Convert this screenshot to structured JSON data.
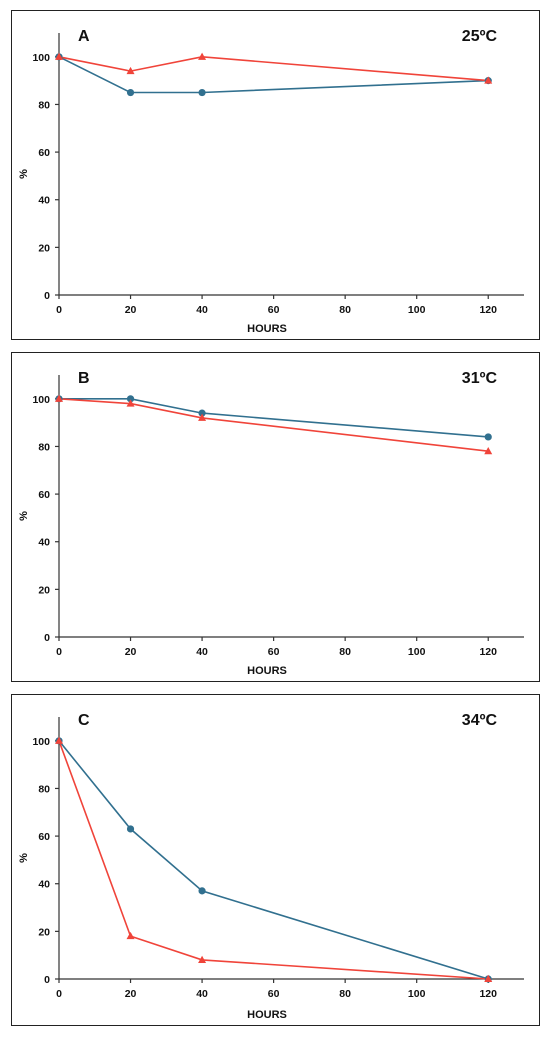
{
  "colors": {
    "series_blue": "#31708f",
    "series_red": "#f0443a"
  },
  "chart_data": [
    {
      "type": "line",
      "title": "A",
      "subtitle": "25ºC",
      "xlabel": "HOURS",
      "ylabel": "%",
      "xlim": [
        0,
        130
      ],
      "ylim": [
        0,
        110
      ],
      "x_ticks": [
        0,
        20,
        40,
        60,
        80,
        100,
        120
      ],
      "y_ticks": [
        0,
        20,
        40,
        60,
        80,
        100
      ],
      "grid": false,
      "series": [
        {
          "marker": "circle",
          "color": "#31708f",
          "x": [
            0,
            20,
            40,
            120
          ],
          "y": [
            100,
            85,
            85,
            90
          ]
        },
        {
          "marker": "triangle",
          "color": "#f0443a",
          "x": [
            0,
            20,
            40,
            120
          ],
          "y": [
            100,
            94,
            100,
            90
          ]
        }
      ]
    },
    {
      "type": "line",
      "title": "B",
      "subtitle": "31ºC",
      "xlabel": "HOURS",
      "ylabel": "%",
      "xlim": [
        0,
        130
      ],
      "ylim": [
        0,
        110
      ],
      "x_ticks": [
        0,
        20,
        40,
        60,
        80,
        100,
        120
      ],
      "y_ticks": [
        0,
        20,
        40,
        60,
        80,
        100
      ],
      "grid": false,
      "series": [
        {
          "marker": "circle",
          "color": "#31708f",
          "x": [
            0,
            20,
            40,
            120
          ],
          "y": [
            100,
            100,
            94,
            84
          ]
        },
        {
          "marker": "triangle",
          "color": "#f0443a",
          "x": [
            0,
            20,
            40,
            120
          ],
          "y": [
            100,
            98,
            92,
            78
          ]
        }
      ]
    },
    {
      "type": "line",
      "title": "C",
      "subtitle": "34ºC",
      "xlabel": "HOURS",
      "ylabel": "%",
      "xlim": [
        0,
        130
      ],
      "ylim": [
        0,
        110
      ],
      "x_ticks": [
        0,
        20,
        40,
        60,
        80,
        100,
        120
      ],
      "y_ticks": [
        0,
        20,
        40,
        60,
        80,
        100
      ],
      "grid": false,
      "series": [
        {
          "marker": "circle",
          "color": "#31708f",
          "x": [
            0,
            20,
            40,
            120
          ],
          "y": [
            100,
            63,
            37,
            0
          ]
        },
        {
          "marker": "triangle",
          "color": "#f0443a",
          "x": [
            0,
            20,
            40,
            120
          ],
          "y": [
            100,
            18,
            8,
            0
          ]
        }
      ]
    }
  ]
}
